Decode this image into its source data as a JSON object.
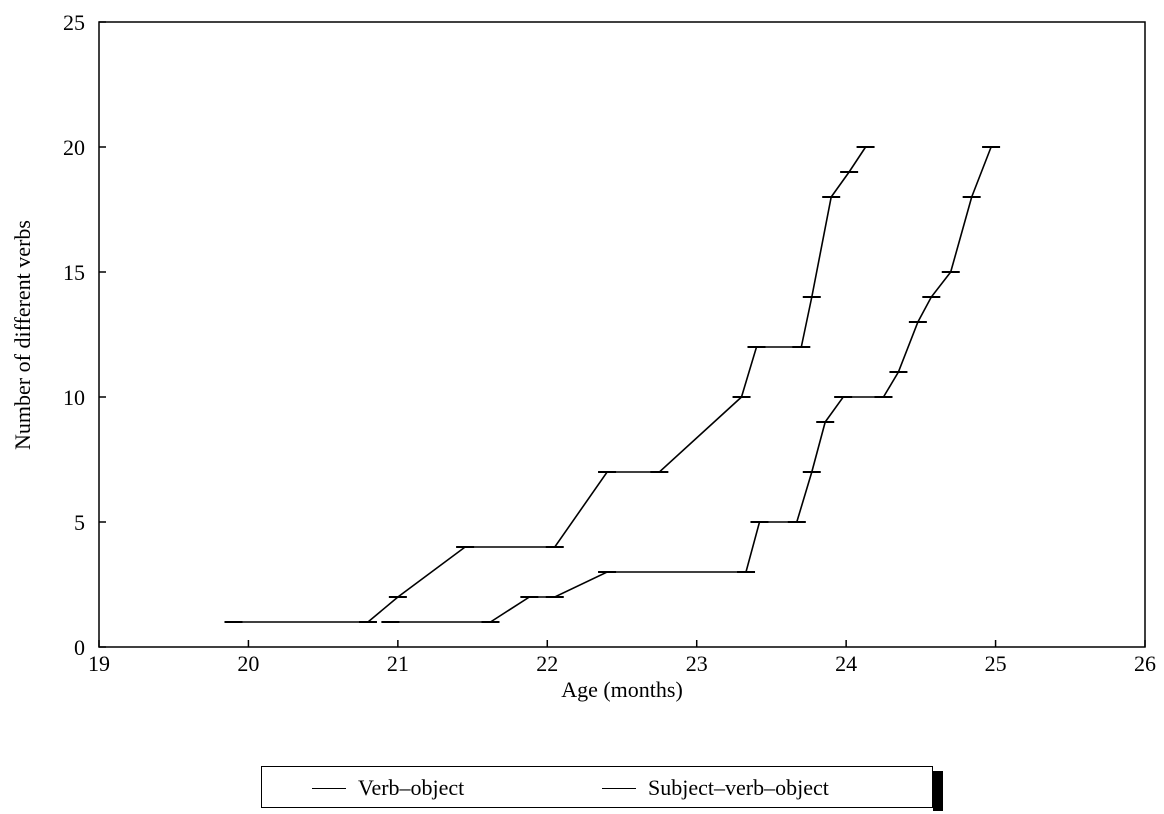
{
  "chart_data": {
    "type": "line",
    "xlabel": "Age (months)",
    "ylabel": "Number of different verbs",
    "xlim": [
      19,
      26
    ],
    "ylim": [
      0,
      25
    ],
    "xticks": [
      "19",
      "20",
      "21",
      "22",
      "23",
      "24",
      "25",
      "26"
    ],
    "yticks": [
      "0",
      "5",
      "10",
      "15",
      "20",
      "25"
    ],
    "grid": false,
    "legend_position": "bottom",
    "series": [
      {
        "name": "Verb–object",
        "color": "#000000",
        "points": [
          [
            19.9,
            1
          ],
          [
            20.8,
            1
          ],
          [
            21.0,
            2
          ],
          [
            21.45,
            4
          ],
          [
            22.05,
            4
          ],
          [
            22.4,
            7
          ],
          [
            22.75,
            7
          ],
          [
            23.3,
            10
          ],
          [
            23.4,
            12
          ],
          [
            23.7,
            12
          ],
          [
            23.77,
            14
          ],
          [
            23.9,
            18
          ],
          [
            24.02,
            19
          ],
          [
            24.13,
            20
          ]
        ]
      },
      {
        "name": "Subject–verb–object",
        "color": "#000000",
        "points": [
          [
            20.95,
            1
          ],
          [
            21.62,
            1
          ],
          [
            21.88,
            2
          ],
          [
            22.05,
            2
          ],
          [
            22.4,
            3
          ],
          [
            23.33,
            3
          ],
          [
            23.42,
            5
          ],
          [
            23.67,
            5
          ],
          [
            23.77,
            7
          ],
          [
            23.86,
            9
          ],
          [
            23.98,
            10
          ],
          [
            24.25,
            10
          ],
          [
            24.35,
            11
          ],
          [
            24.48,
            13
          ],
          [
            24.57,
            14
          ],
          [
            24.7,
            15
          ],
          [
            24.84,
            18
          ],
          [
            24.97,
            20
          ]
        ]
      }
    ]
  }
}
